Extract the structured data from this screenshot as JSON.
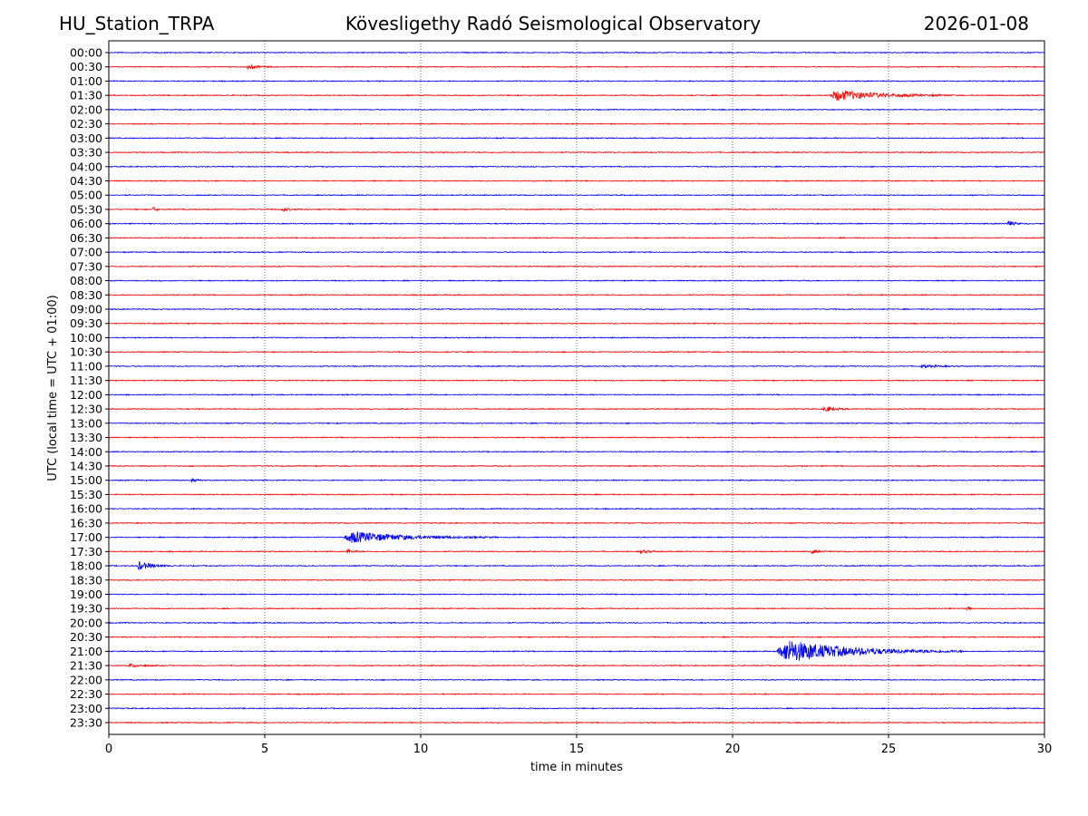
{
  "header": {
    "station": "HU_Station_TRPA",
    "observatory": "Kövesligethy Radó Seismological Observatory",
    "date": "2026-01-08"
  },
  "chart_data": {
    "type": "line",
    "title": "Kövesligethy Radó Seismological Observatory",
    "xlabel": "time in minutes",
    "ylabel": "UTC (local time = UTC + 01:00)",
    "xlim": [
      0,
      30
    ],
    "x_ticks": [
      "0",
      "5",
      "10",
      "15",
      "20",
      "25",
      "30"
    ],
    "grid": "vertical dotted at every 5 minutes",
    "row_labels": [
      "00:00",
      "00:30",
      "01:00",
      "01:30",
      "02:00",
      "02:30",
      "03:00",
      "03:30",
      "04:00",
      "04:30",
      "05:00",
      "05:30",
      "06:00",
      "06:30",
      "07:00",
      "07:30",
      "08:00",
      "08:30",
      "09:00",
      "09:30",
      "10:00",
      "10:30",
      "11:00",
      "11:30",
      "12:00",
      "12:30",
      "13:00",
      "13:30",
      "14:00",
      "14:30",
      "15:00",
      "15:30",
      "16:00",
      "16:30",
      "17:00",
      "17:30",
      "18:00",
      "18:30",
      "19:00",
      "19:30",
      "20:00",
      "20:30",
      "21:00",
      "21:30",
      "22:00",
      "22:30",
      "23:00",
      "23:30"
    ],
    "colors": {
      "even_rows": "#0000ff",
      "odd_rows": "#ff0000"
    },
    "events": [
      {
        "row": "00:30",
        "start_min": 4.4,
        "duration_min": 1.0,
        "amp": 0.3
      },
      {
        "row": "01:30",
        "start_min": 23.1,
        "duration_min": 4.0,
        "amp": 0.75
      },
      {
        "row": "05:30",
        "start_min": 1.4,
        "duration_min": 0.3,
        "amp": 0.4
      },
      {
        "row": "05:30",
        "start_min": 5.5,
        "duration_min": 0.9,
        "amp": 0.2
      },
      {
        "row": "06:00",
        "start_min": 28.8,
        "duration_min": 0.5,
        "amp": 0.5
      },
      {
        "row": "11:00",
        "start_min": 26.0,
        "duration_min": 1.5,
        "amp": 0.2
      },
      {
        "row": "12:30",
        "start_min": 22.9,
        "duration_min": 0.9,
        "amp": 0.45
      },
      {
        "row": "15:00",
        "start_min": 2.6,
        "duration_min": 0.5,
        "amp": 0.3
      },
      {
        "row": "17:00",
        "start_min": 7.5,
        "duration_min": 5.0,
        "amp": 0.8
      },
      {
        "row": "17:30",
        "start_min": 7.6,
        "duration_min": 0.6,
        "amp": 0.3
      },
      {
        "row": "17:30",
        "start_min": 17.0,
        "duration_min": 0.8,
        "amp": 0.25
      },
      {
        "row": "17:30",
        "start_min": 22.5,
        "duration_min": 0.7,
        "amp": 0.25
      },
      {
        "row": "18:00",
        "start_min": 0.9,
        "duration_min": 1.2,
        "amp": 0.6
      },
      {
        "row": "19:30",
        "start_min": 27.5,
        "duration_min": 0.3,
        "amp": 0.35
      },
      {
        "row": "21:00",
        "start_min": 21.4,
        "duration_min": 6.0,
        "amp": 1.6
      },
      {
        "row": "21:30",
        "start_min": 0.6,
        "duration_min": 1.2,
        "amp": 0.25
      }
    ]
  }
}
